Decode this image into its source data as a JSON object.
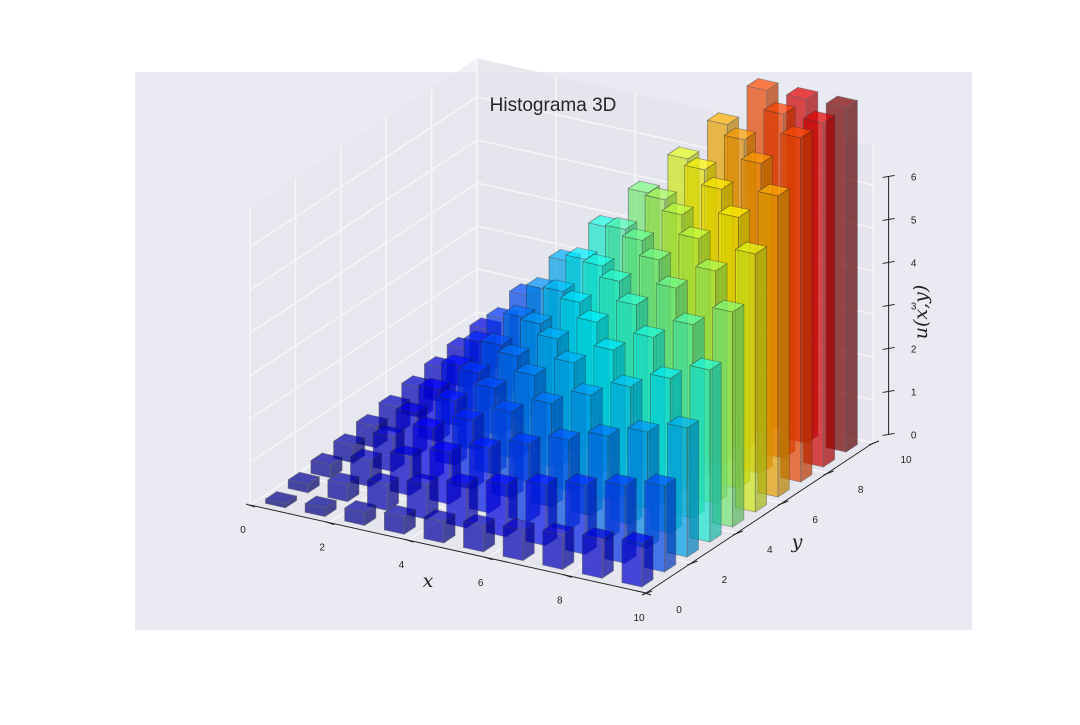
{
  "chart_data": {
    "type": "bar3d",
    "title": "Histograma 3D",
    "xlabel": "x",
    "ylabel": "y",
    "zlabel": "u(x,y)",
    "xlim": [
      0,
      10
    ],
    "ylim": [
      0,
      10
    ],
    "zlim": [
      0,
      6
    ],
    "x_ticks": [
      "0",
      "2",
      "4",
      "6",
      "8",
      "10"
    ],
    "y_ticks": [
      "0",
      "2",
      "4",
      "6",
      "8",
      "10"
    ],
    "z_ticks": [
      "0",
      "1",
      "2",
      "3",
      "4",
      "5",
      "6"
    ],
    "x_centers": [
      0.5,
      1.5,
      2.5,
      3.5,
      4.5,
      5.5,
      6.5,
      7.5,
      8.5,
      9.5
    ],
    "y_centers": [
      0.5,
      1.5,
      2.5,
      3.5,
      4.5,
      5.5,
      6.5,
      7.5,
      8.5,
      9.5
    ],
    "bar_width": 0.5,
    "values": [
      [
        0.1,
        0.2,
        0.3,
        0.4,
        0.5,
        0.6,
        0.7,
        0.8,
        0.9,
        1.0
      ],
      [
        0.2,
        0.4,
        0.6,
        0.8,
        1.0,
        1.2,
        1.4,
        1.6,
        1.8,
        2.0
      ],
      [
        0.3,
        0.6,
        0.9,
        1.2,
        1.5,
        1.8,
        2.1,
        2.4,
        2.7,
        3.0
      ],
      [
        0.4,
        0.8,
        1.2,
        1.6,
        2.0,
        2.4,
        2.8,
        3.2,
        3.6,
        4.0
      ],
      [
        0.5,
        1.0,
        1.5,
        2.0,
        2.5,
        3.0,
        3.5,
        4.0,
        4.5,
        5.0
      ],
      [
        0.6,
        1.2,
        1.8,
        2.4,
        3.0,
        3.6,
        4.2,
        4.8,
        5.4,
        6.0
      ],
      [
        0.7,
        1.4,
        2.1,
        2.8,
        3.5,
        4.2,
        4.9,
        5.6,
        6.3,
        7.0
      ],
      [
        0.8,
        1.6,
        2.4,
        3.2,
        4.0,
        4.8,
        5.6,
        6.4,
        7.2,
        8.0
      ],
      [
        0.9,
        1.8,
        2.7,
        3.6,
        4.5,
        5.4,
        6.3,
        7.2,
        8.1,
        9.0
      ],
      [
        1.0,
        2.0,
        3.0,
        4.0,
        5.0,
        6.0,
        7.0,
        8.0,
        9.0,
        10.0
      ]
    ],
    "colormap": "jet",
    "bar_alpha": 0.7,
    "grid": true,
    "background": "#eaeaf2",
    "pane_color": "#e4e4ec"
  }
}
